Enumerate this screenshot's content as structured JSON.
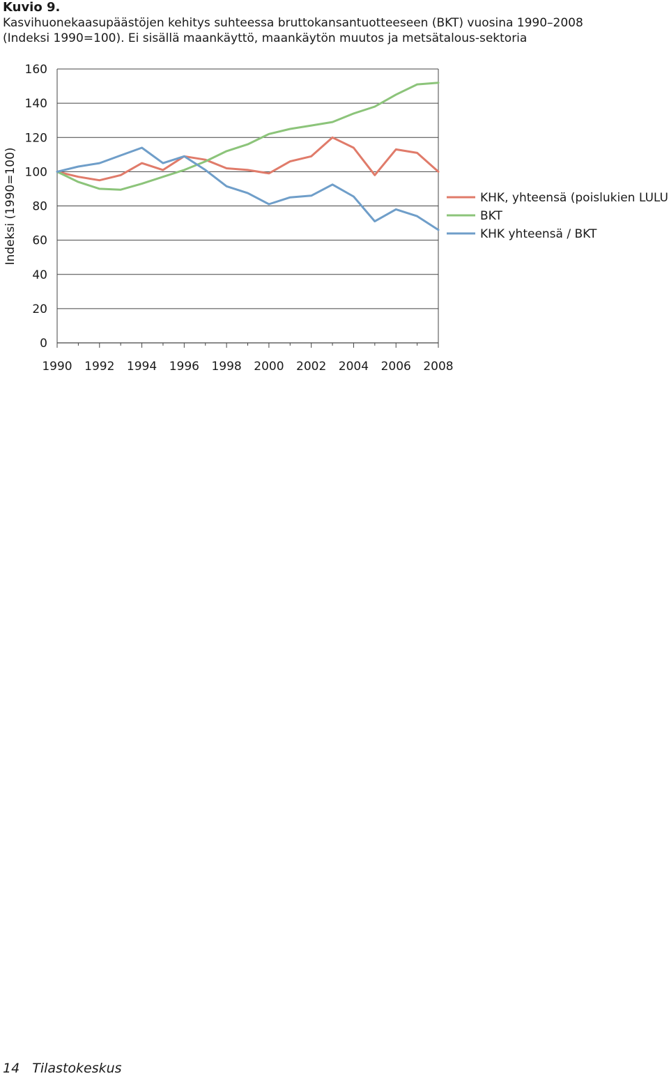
{
  "figure": {
    "label": "Kuvio 9.",
    "title_line1": "Kasvihuonekaasupäästöjen kehitys suhteessa bruttokansantuotteeseen (BKT) vuosina 1990–2008",
    "title_line2": "(Indeksi 1990=100). Ei sisällä maankäyttö, maankäytön muutos ja metsätalous-sektoria"
  },
  "chart_data": {
    "type": "line",
    "ylabel": "Indeksi (1990=100)",
    "xlabel": "",
    "ylim": [
      0,
      160
    ],
    "yticks": [
      0,
      20,
      40,
      60,
      80,
      100,
      120,
      140,
      160
    ],
    "xlim": [
      1990,
      2008
    ],
    "xtick_labels": [
      "1990",
      "1992",
      "1994",
      "1996",
      "1998",
      "2000",
      "2002",
      "2004",
      "2006",
      "2008"
    ],
    "x": [
      1990,
      1991,
      1992,
      1993,
      1994,
      1995,
      1996,
      1997,
      1998,
      1999,
      2000,
      2001,
      2002,
      2003,
      2004,
      2005,
      2006,
      2007,
      2008
    ],
    "grid": "horizontal",
    "legend_position": "right",
    "series": [
      {
        "name": "KHK, yhteensä (poislukien LULUCF)",
        "color": "#e07b6a",
        "values": [
          100,
          97,
          95,
          98,
          105,
          101,
          109,
          107,
          102,
          101,
          99,
          106,
          109,
          120,
          114,
          98,
          113,
          111,
          100
        ]
      },
      {
        "name": "BKT",
        "color": "#8cc47a",
        "values": [
          100,
          94,
          90,
          89.5,
          93,
          97,
          101,
          106,
          112,
          116,
          122,
          125,
          127,
          129,
          134,
          138,
          145,
          151,
          152
        ]
      },
      {
        "name": "KHK yhteensä / BKT",
        "color": "#6f9ec9",
        "values": [
          100,
          103,
          105,
          109.5,
          114,
          105,
          109,
          101,
          91.5,
          87.5,
          81,
          85,
          86,
          92.5,
          85.5,
          71,
          78,
          74,
          66
        ]
      }
    ]
  },
  "footer": {
    "page_number": "14",
    "publisher": "Tilastokeskus"
  }
}
